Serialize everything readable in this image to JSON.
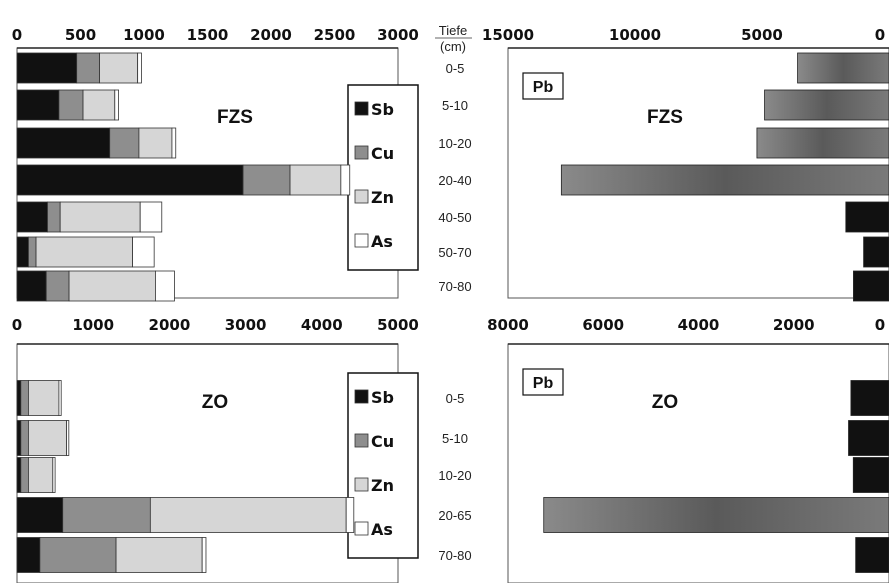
{
  "depth_header": {
    "line1": "Tiefe",
    "line2": "(cm)"
  },
  "colors": {
    "Sb": "#111111",
    "Cu": "#8e8e8e",
    "Zn": "#d6d6d6",
    "As": "#ffffff",
    "Pb_high": "#6e6e6e",
    "Pb_low": "#111111"
  },
  "chart_data": [
    {
      "type": "bar",
      "orientation": "horizontal-stacked",
      "label": "FZS",
      "categories": [
        "0-5",
        "5-10",
        "10-20",
        "20-40",
        "40-50",
        "50-70",
        "70-80"
      ],
      "xlim": [
        0,
        3000
      ],
      "xticks": [
        "0",
        "500",
        "1000",
        "1500",
        "2000",
        "2500",
        "3000"
      ],
      "series": [
        {
          "name": "Sb",
          "values": [
            470,
            330,
            730,
            1780,
            240,
            90,
            230
          ]
        },
        {
          "name": "Cu",
          "values": [
            180,
            190,
            230,
            370,
            100,
            60,
            180
          ]
        },
        {
          "name": "Zn",
          "values": [
            300,
            250,
            260,
            400,
            630,
            760,
            680
          ]
        },
        {
          "name": "As",
          "values": [
            30,
            30,
            30,
            70,
            170,
            170,
            150
          ]
        }
      ],
      "legend": [
        "Sb",
        "Cu",
        "Zn",
        "As"
      ]
    },
    {
      "type": "bar",
      "orientation": "horizontal-reversed",
      "label": "Pb",
      "plot_label": "FZS",
      "categories": [
        "0-5",
        "5-10",
        "10-20",
        "20-40",
        "40-50",
        "50-70",
        "70-80"
      ],
      "xlim": [
        15000,
        0
      ],
      "xticks": [
        "15000",
        "10000",
        "5000",
        "0"
      ],
      "series": [
        {
          "name": "Pb",
          "values": [
            3600,
            4900,
            5200,
            12900,
            1700,
            1000,
            1400
          ]
        }
      ]
    },
    {
      "type": "bar",
      "orientation": "horizontal-stacked",
      "label": "ZO",
      "categories": [
        "0-5",
        "5-10",
        "10-20",
        "20-65",
        "70-80"
      ],
      "xlim": [
        0,
        5000
      ],
      "xticks": [
        "0",
        "1000",
        "2000",
        "3000",
        "4000",
        "5000"
      ],
      "series": [
        {
          "name": "Sb",
          "values": [
            50,
            50,
            50,
            600,
            300
          ]
        },
        {
          "name": "Cu",
          "values": [
            100,
            100,
            100,
            1150,
            1000
          ]
        },
        {
          "name": "Zn",
          "values": [
            400,
            500,
            320,
            2570,
            1130
          ]
        },
        {
          "name": "As",
          "values": [
            30,
            30,
            30,
            100,
            50
          ]
        }
      ],
      "legend": [
        "Sb",
        "Cu",
        "Zn",
        "As"
      ]
    },
    {
      "type": "bar",
      "orientation": "horizontal-reversed",
      "label": "Pb",
      "plot_label": "ZO",
      "categories": [
        "0-5",
        "5-10",
        "10-20",
        "20-65",
        "70-80"
      ],
      "xlim": [
        8000,
        0
      ],
      "xticks": [
        "8000",
        "6000",
        "4000",
        "2000",
        "0"
      ],
      "series": [
        {
          "name": "Pb",
          "values": [
            800,
            850,
            750,
            7250,
            700
          ]
        }
      ]
    }
  ]
}
